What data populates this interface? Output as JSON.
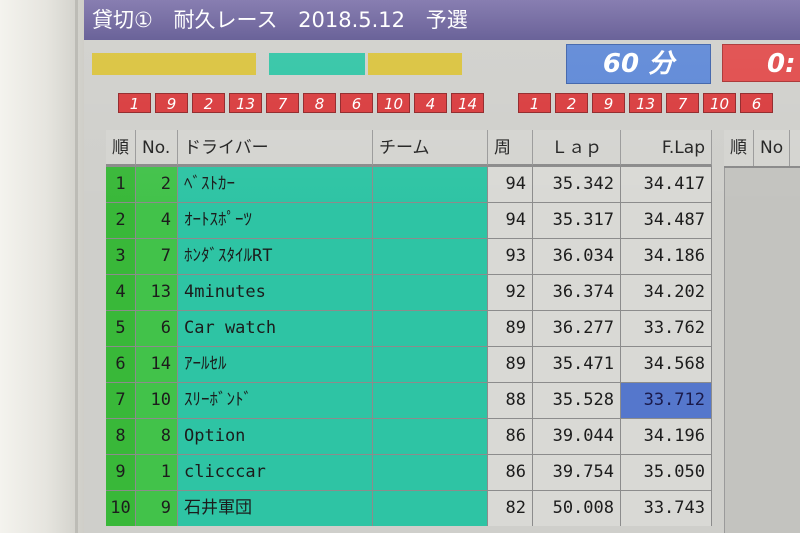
{
  "title": {
    "part1": "貸切①",
    "part2": "耐久レース",
    "part3": "2018.5.12",
    "part4": "予選"
  },
  "timer": {
    "time": "60 分",
    "right_partial": "0:"
  },
  "colors": {
    "title_bar": "#5d5590",
    "bar_yellow": "#d9c23a",
    "bar_teal": "#2ec4a4",
    "timer_blue": "#5b86d6",
    "timer_red": "#e04848",
    "tile_red": "#d8393b",
    "position_green": "#39b839",
    "driver_teal": "#2ec4a4",
    "best_lap_blue": "#5577cc"
  },
  "order_tiles_left": [
    "1",
    "9",
    "2",
    "13",
    "7",
    "8",
    "6",
    "10",
    "4",
    "14"
  ],
  "order_tiles_right": [
    "1",
    "2",
    "9",
    "13",
    "7",
    "10",
    "6"
  ],
  "table": {
    "headers": {
      "pos": "順",
      "no": "No.",
      "driver": "ドライバー",
      "team": "チーム",
      "laps": "周",
      "lap": "Ｌａｐ",
      "fastest": "F.Lap"
    },
    "rows": [
      {
        "pos": "1",
        "no": "2",
        "driver": "ﾍﾞｽﾄｶｰ",
        "team": "",
        "laps": "94",
        "lap": "35.342",
        "fastest": "34.417"
      },
      {
        "pos": "2",
        "no": "4",
        "driver": "ｵｰﾄｽﾎﾟｰﾂ",
        "team": "",
        "laps": "94",
        "lap": "35.317",
        "fastest": "34.487"
      },
      {
        "pos": "3",
        "no": "7",
        "driver": "ﾎﾝﾀﾞｽﾀｲﾙRT",
        "team": "",
        "laps": "93",
        "lap": "36.034",
        "fastest": "34.186"
      },
      {
        "pos": "4",
        "no": "13",
        "driver": "4minutes",
        "team": "",
        "laps": "92",
        "lap": "36.374",
        "fastest": "34.202"
      },
      {
        "pos": "5",
        "no": "6",
        "driver": "Car watch",
        "team": "",
        "laps": "89",
        "lap": "36.277",
        "fastest": "33.762"
      },
      {
        "pos": "6",
        "no": "14",
        "driver": "ｱｰﾙｾﾙ",
        "team": "",
        "laps": "89",
        "lap": "35.471",
        "fastest": "34.568"
      },
      {
        "pos": "7",
        "no": "10",
        "driver": "ｽﾘｰﾎﾞﾝﾄﾞ",
        "team": "",
        "laps": "88",
        "lap": "35.528",
        "fastest": "33.712",
        "best": true
      },
      {
        "pos": "8",
        "no": "8",
        "driver": "Option",
        "team": "",
        "laps": "86",
        "lap": "39.044",
        "fastest": "34.196"
      },
      {
        "pos": "9",
        "no": "1",
        "driver": "clicccar",
        "team": "",
        "laps": "86",
        "lap": "39.754",
        "fastest": "35.050"
      },
      {
        "pos": "10",
        "no": "9",
        "driver": "石井軍団",
        "team": "",
        "laps": "82",
        "lap": "50.008",
        "fastest": "33.743"
      }
    ]
  },
  "table2": {
    "headers": {
      "pos": "順",
      "no": "No"
    }
  }
}
